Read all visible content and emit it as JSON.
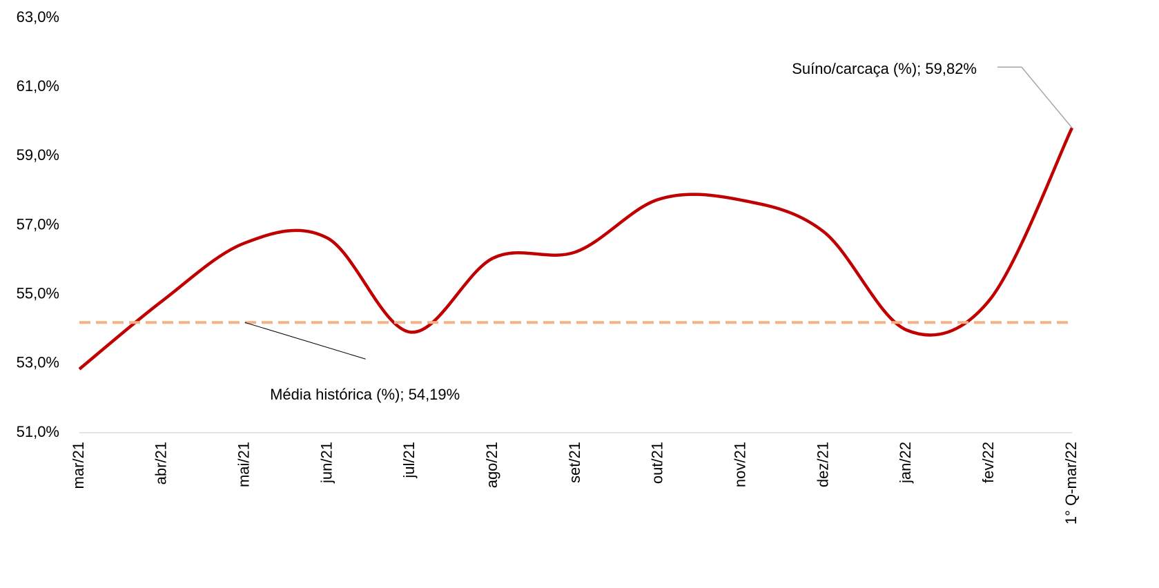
{
  "chart_data": {
    "type": "line",
    "categories": [
      "mar/21",
      "abr/21",
      "mai/21",
      "jun/21",
      "jul/21",
      "ago/21",
      "set/21",
      "out/21",
      "nov/21",
      "dez/21",
      "jan/22",
      "fev/22",
      "1° Q-mar/22"
    ],
    "series": [
      {
        "name": "Suíno/carcaça (%)",
        "color": "#c00000",
        "smooth": true,
        "values": [
          52.84,
          54.81,
          56.49,
          56.63,
          53.91,
          56.05,
          56.23,
          57.75,
          57.73,
          56.81,
          53.97,
          54.83,
          59.82
        ],
        "value_labels": [
          null,
          null,
          null,
          null,
          null,
          null,
          null,
          null,
          null,
          null,
          null,
          null,
          "Suíno/carcaça (%); 59,82%"
        ]
      },
      {
        "name": "Média histórica (%)",
        "color": "#f4b183",
        "dashed": true,
        "values": [
          54.19,
          54.19,
          54.19,
          54.19,
          54.19,
          54.19,
          54.19,
          54.19,
          54.19,
          54.19,
          54.19,
          54.19,
          54.19
        ],
        "value_labels": [
          null,
          null,
          "Média histórica (%); 54,19%",
          null,
          null,
          null,
          null,
          null,
          null,
          null,
          null,
          null,
          null
        ]
      }
    ],
    "ylim": [
      51,
      63
    ],
    "yticks": [
      {
        "value": 51,
        "label": "51,0%"
      },
      {
        "value": 53,
        "label": "53,0%"
      },
      {
        "value": 55,
        "label": "55,0%"
      },
      {
        "value": 57,
        "label": "57,0%"
      },
      {
        "value": 59,
        "label": "59,0%"
      },
      {
        "value": 61,
        "label": "61,0%"
      },
      {
        "value": 63,
        "label": "63,0%"
      }
    ],
    "grid": false
  }
}
